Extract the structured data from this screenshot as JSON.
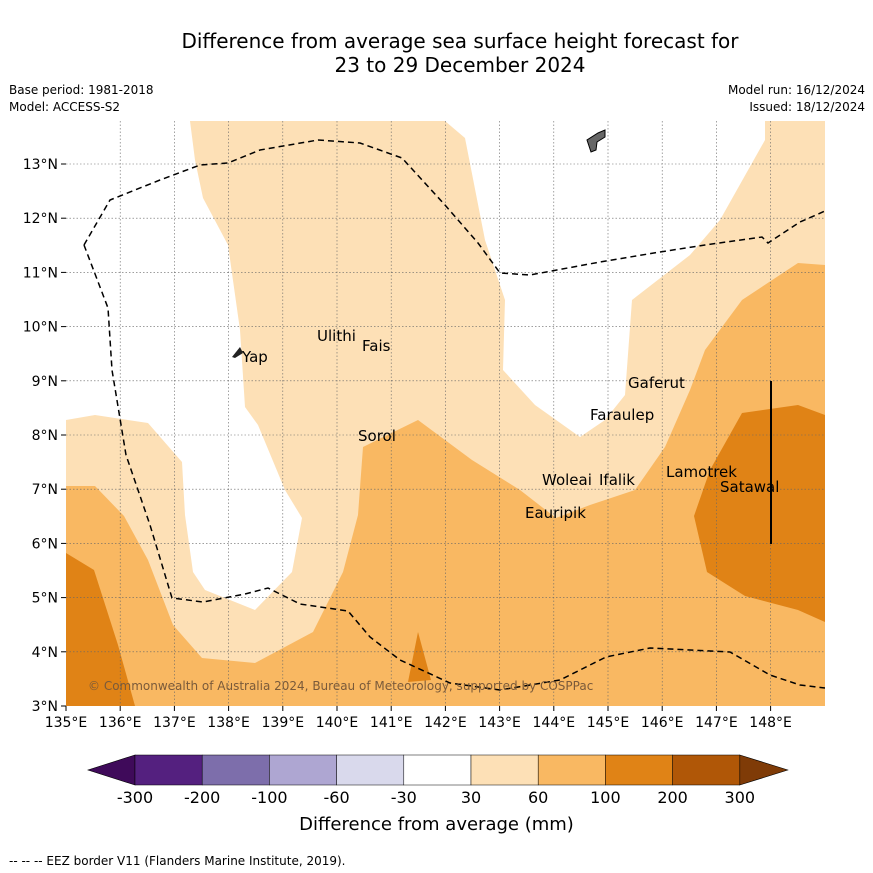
{
  "title": {
    "line1": "Difference from average sea surface height forecast for",
    "line2": "23 to 29 December 2024"
  },
  "meta": {
    "base_period": "Base period: 1981-2018",
    "model": "Model: ACCESS-S2",
    "model_run": "Model run: 16/12/2024",
    "issued": "Issued: 18/12/2024"
  },
  "axes": {
    "lon_labels": [
      "135°E",
      "136°E",
      "137°E",
      "138°E",
      "139°E",
      "140°E",
      "141°E",
      "142°E",
      "143°E",
      "144°E",
      "145°E",
      "146°E",
      "147°E",
      "148°E"
    ],
    "lat_labels": [
      "3°N",
      "4°N",
      "5°N",
      "6°N",
      "7°N",
      "8°N",
      "9°N",
      "10°N",
      "11°N",
      "12°N",
      "13°N"
    ]
  },
  "places": {
    "yap": "Yap",
    "ulithi": "Ulithi",
    "fais": "Fais",
    "sorol": "Sorol",
    "gaferut": "Gaferut",
    "faraulep": "Faraulep",
    "woleai": "Woleai",
    "ifalik": "Ifalik",
    "eauripik": "Eauripik",
    "lamotrek": "Lamotrek",
    "satawal": "Satawal"
  },
  "copyright": "© Commonwealth of Australia 2024, Bureau of Meteorology, supported by COSPPac",
  "colorbar": {
    "labels": [
      "-300",
      "-200",
      "-100",
      "-60",
      "-30",
      "30",
      "60",
      "100",
      "200",
      "300"
    ],
    "colors": [
      "#3f0a5a",
      "#54207f",
      "#7d6eab",
      "#aea6d2",
      "#d9d9ec",
      "#ffffff",
      "#fde0b6",
      "#f9b862",
      "#e08316",
      "#b05707",
      "#7f3b07"
    ],
    "title": "Difference from average (mm)"
  },
  "footnote": "--  --  -- EEZ border V11 (Flanders Marine Institute, 2019)."
}
